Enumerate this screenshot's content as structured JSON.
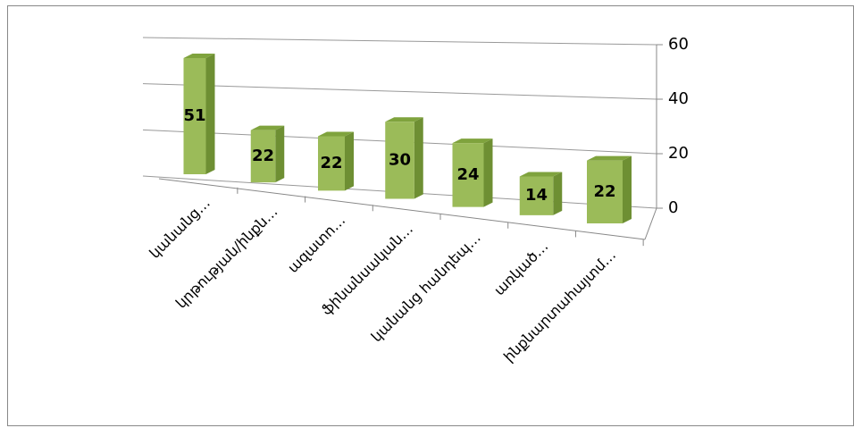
{
  "chart_data": {
    "type": "bar3d",
    "categories": [
      "կանանց…",
      "կրթության/ինքն…",
      "ազատո…",
      "ֆինանսական…",
      "կանանց հանդեպ…",
      "առկած…",
      "ինքնարտահայտմ…"
    ],
    "values": [
      51,
      22,
      22,
      30,
      24,
      14,
      22
    ],
    "color": "#9bbb59",
    "ylim": [
      0,
      60
    ],
    "yticks": [
      0,
      20,
      40,
      60
    ],
    "grid": true
  }
}
